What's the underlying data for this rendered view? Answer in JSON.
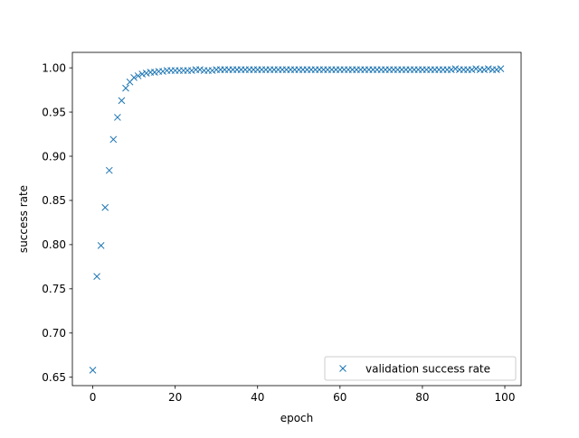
{
  "chart_data": {
    "type": "scatter",
    "title": "",
    "xlabel": "epoch",
    "ylabel": "success rate",
    "xlim": [
      -4.95,
      103.95
    ],
    "ylim": [
      0.6405,
      1.0175
    ],
    "xticks": [
      0,
      20,
      40,
      60,
      80,
      100
    ],
    "yticks": [
      0.65,
      0.7,
      0.75,
      0.8,
      0.85,
      0.9,
      0.95,
      1.0
    ],
    "xtick_labels": [
      "0",
      "20",
      "40",
      "60",
      "80",
      "100"
    ],
    "ytick_labels": [
      "0.65",
      "0.70",
      "0.75",
      "0.80",
      "0.85",
      "0.90",
      "0.95",
      "1.00"
    ],
    "grid": false,
    "legend_position": "lower-right",
    "marker": "x",
    "series": [
      {
        "name": "validation success rate",
        "color": "#1f77b4",
        "x": [
          0,
          1,
          2,
          3,
          4,
          5,
          6,
          7,
          8,
          9,
          10,
          11,
          12,
          13,
          14,
          15,
          16,
          17,
          18,
          19,
          20,
          21,
          22,
          23,
          24,
          25,
          26,
          27,
          28,
          29,
          30,
          31,
          32,
          33,
          34,
          35,
          36,
          37,
          38,
          39,
          40,
          41,
          42,
          43,
          44,
          45,
          46,
          47,
          48,
          49,
          50,
          51,
          52,
          53,
          54,
          55,
          56,
          57,
          58,
          59,
          60,
          61,
          62,
          63,
          64,
          65,
          66,
          67,
          68,
          69,
          70,
          71,
          72,
          73,
          74,
          75,
          76,
          77,
          78,
          79,
          80,
          81,
          82,
          83,
          84,
          85,
          86,
          87,
          88,
          89,
          90,
          91,
          92,
          93,
          94,
          95,
          96,
          97,
          98,
          99
        ],
        "y": [
          0.658,
          0.764,
          0.799,
          0.842,
          0.884,
          0.919,
          0.944,
          0.963,
          0.977,
          0.984,
          0.989,
          0.991,
          0.993,
          0.994,
          0.995,
          0.995,
          0.996,
          0.996,
          0.997,
          0.997,
          0.997,
          0.997,
          0.997,
          0.997,
          0.997,
          0.998,
          0.998,
          0.997,
          0.997,
          0.997,
          0.998,
          0.998,
          0.998,
          0.998,
          0.998,
          0.998,
          0.998,
          0.998,
          0.998,
          0.998,
          0.998,
          0.998,
          0.998,
          0.998,
          0.998,
          0.998,
          0.998,
          0.998,
          0.998,
          0.998,
          0.998,
          0.998,
          0.998,
          0.998,
          0.998,
          0.998,
          0.998,
          0.998,
          0.998,
          0.998,
          0.998,
          0.998,
          0.998,
          0.998,
          0.998,
          0.998,
          0.998,
          0.998,
          0.998,
          0.998,
          0.998,
          0.998,
          0.998,
          0.998,
          0.998,
          0.998,
          0.998,
          0.998,
          0.998,
          0.998,
          0.998,
          0.998,
          0.998,
          0.998,
          0.998,
          0.998,
          0.998,
          0.998,
          0.999,
          0.998,
          0.998,
          0.998,
          0.998,
          0.999,
          0.998,
          0.998,
          0.999,
          0.998,
          0.998,
          0.999
        ]
      }
    ]
  }
}
